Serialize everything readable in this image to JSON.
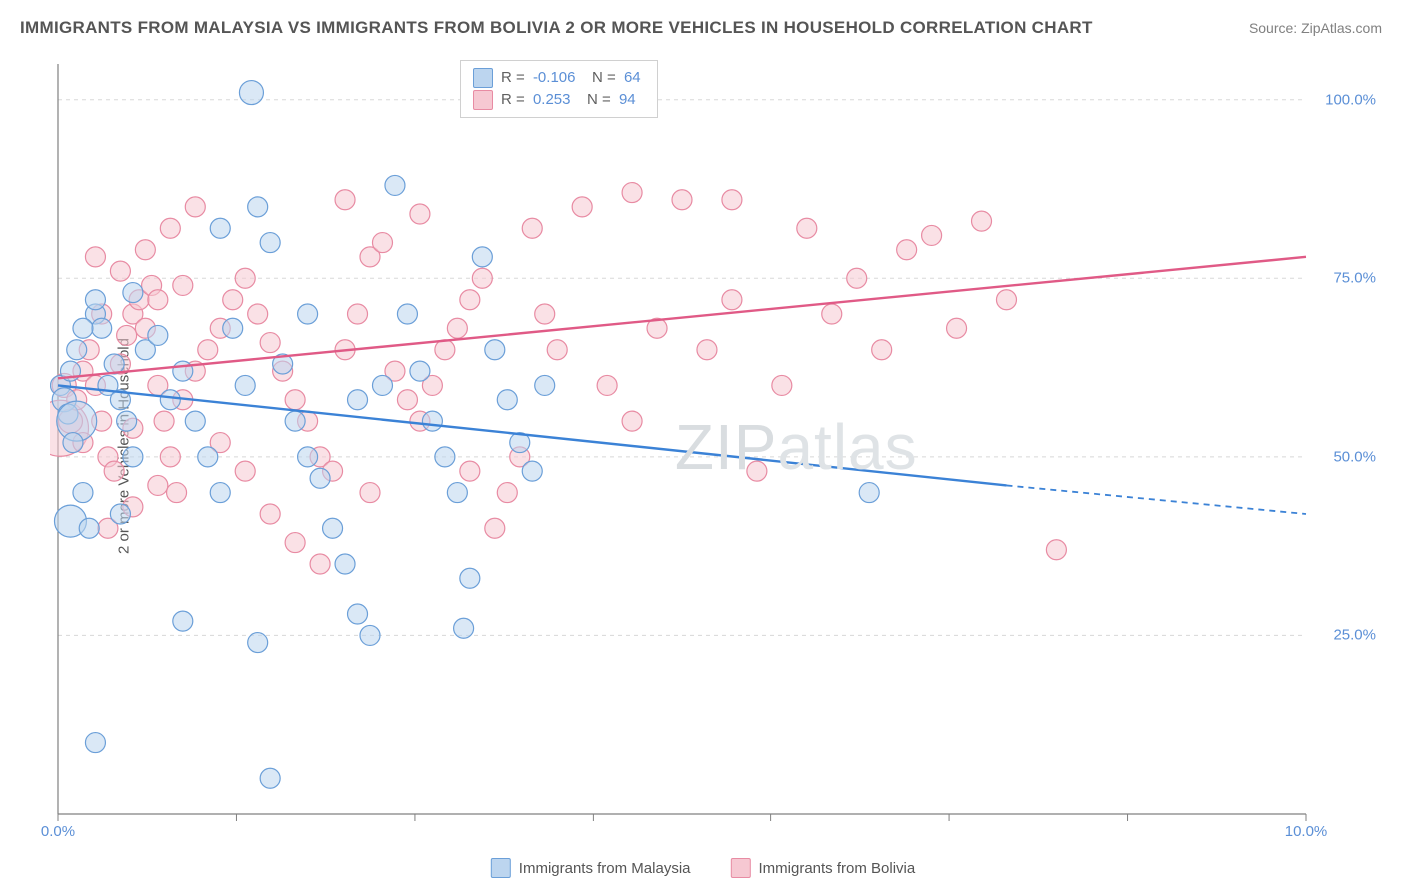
{
  "title": "IMMIGRANTS FROM MALAYSIA VS IMMIGRANTS FROM BOLIVIA 2 OR MORE VEHICLES IN HOUSEHOLD CORRELATION CHART",
  "source": "Source: ZipAtlas.com",
  "y_axis_label": "2 or more Vehicles in Household",
  "watermark": "ZIPatlas",
  "chart": {
    "type": "scatter",
    "background_color": "#ffffff",
    "grid_color": "#d8d8d8",
    "axis_color": "#808080",
    "xlim": [
      0,
      10
    ],
    "ylim": [
      0,
      105
    ],
    "x_ticks": [
      0,
      1.43,
      2.86,
      4.29,
      5.71,
      7.14,
      8.57,
      10
    ],
    "x_tick_labels": {
      "0": "0.0%",
      "10": "10.0%"
    },
    "y_ticks": [
      25,
      50,
      75,
      100
    ],
    "y_tick_labels": {
      "25": "25.0%",
      "50": "50.0%",
      "75": "75.0%",
      "100": "100.0%"
    },
    "series": [
      {
        "name": "Immigrants from Malaysia",
        "fill_color": "#bcd5ef",
        "stroke_color": "#6b9fd8",
        "line_color": "#3b82d6",
        "R": "-0.106",
        "N": "64",
        "trend": {
          "x1": 0,
          "y1": 60,
          "x2": 7.6,
          "y2": 46,
          "dash_x2": 10,
          "dash_y2": 42
        },
        "points": [
          [
            0.02,
            60,
            10
          ],
          [
            0.05,
            58,
            12
          ],
          [
            0.1,
            62,
            10
          ],
          [
            0.08,
            56,
            10
          ],
          [
            0.15,
            55,
            20
          ],
          [
            0.1,
            41,
            16
          ],
          [
            0.3,
            70,
            10
          ],
          [
            0.35,
            68,
            10
          ],
          [
            0.4,
            60,
            10
          ],
          [
            0.45,
            63,
            10
          ],
          [
            0.5,
            58,
            10
          ],
          [
            0.55,
            55,
            10
          ],
          [
            0.6,
            50,
            10
          ],
          [
            0.2,
            45,
            10
          ],
          [
            0.25,
            40,
            10
          ],
          [
            0.3,
            72,
            10
          ],
          [
            0.7,
            65,
            10
          ],
          [
            0.8,
            67,
            10
          ],
          [
            0.9,
            58,
            10
          ],
          [
            1.0,
            62,
            10
          ],
          [
            1.1,
            55,
            10
          ],
          [
            1.2,
            50,
            10
          ],
          [
            1.3,
            45,
            10
          ],
          [
            1.4,
            68,
            10
          ],
          [
            1.5,
            60,
            10
          ],
          [
            1.55,
            101,
            12
          ],
          [
            1.6,
            85,
            10
          ],
          [
            1.7,
            80,
            10
          ],
          [
            1.8,
            63,
            10
          ],
          [
            1.9,
            55,
            10
          ],
          [
            2.0,
            50,
            10
          ],
          [
            2.1,
            47,
            10
          ],
          [
            2.2,
            40,
            10
          ],
          [
            2.3,
            35,
            10
          ],
          [
            2.4,
            28,
            10
          ],
          [
            2.5,
            25,
            10
          ],
          [
            2.6,
            60,
            10
          ],
          [
            2.7,
            88,
            10
          ],
          [
            2.8,
            70,
            10
          ],
          [
            2.9,
            62,
            10
          ],
          [
            3.0,
            55,
            10
          ],
          [
            3.1,
            50,
            10
          ],
          [
            3.2,
            45,
            10
          ],
          [
            3.25,
            26,
            10
          ],
          [
            3.3,
            33,
            10
          ],
          [
            3.4,
            78,
            10
          ],
          [
            3.5,
            65,
            10
          ],
          [
            3.6,
            58,
            10
          ],
          [
            3.7,
            52,
            10
          ],
          [
            3.8,
            48,
            10
          ],
          [
            3.9,
            60,
            10
          ],
          [
            1.6,
            24,
            10
          ],
          [
            1.7,
            5,
            10
          ],
          [
            1.0,
            27,
            10
          ],
          [
            0.5,
            42,
            10
          ],
          [
            0.6,
            73,
            10
          ],
          [
            0.2,
            68,
            10
          ],
          [
            0.15,
            65,
            10
          ],
          [
            0.12,
            52,
            10
          ],
          [
            0.3,
            10,
            10
          ],
          [
            6.5,
            45,
            10
          ],
          [
            2.0,
            70,
            10
          ],
          [
            1.3,
            82,
            10
          ],
          [
            2.4,
            58,
            10
          ]
        ]
      },
      {
        "name": "Immigrants from Bolivia",
        "fill_color": "#f6c8d2",
        "stroke_color": "#e88ba3",
        "line_color": "#e05a86",
        "R": "0.253",
        "N": "94",
        "trend": {
          "x1": 0,
          "y1": 61,
          "x2": 10,
          "y2": 78
        },
        "points": [
          [
            0.02,
            54,
            28
          ],
          [
            0.05,
            60,
            12
          ],
          [
            0.1,
            55,
            12
          ],
          [
            0.15,
            58,
            10
          ],
          [
            0.2,
            62,
            10
          ],
          [
            0.25,
            65,
            10
          ],
          [
            0.3,
            60,
            10
          ],
          [
            0.35,
            55,
            10
          ],
          [
            0.4,
            50,
            10
          ],
          [
            0.45,
            48,
            10
          ],
          [
            0.5,
            63,
            10
          ],
          [
            0.55,
            67,
            10
          ],
          [
            0.6,
            70,
            10
          ],
          [
            0.65,
            72,
            10
          ],
          [
            0.7,
            68,
            10
          ],
          [
            0.75,
            74,
            10
          ],
          [
            0.8,
            60,
            10
          ],
          [
            0.85,
            55,
            10
          ],
          [
            0.9,
            50,
            10
          ],
          [
            0.95,
            45,
            10
          ],
          [
            1.0,
            58,
            10
          ],
          [
            1.1,
            62,
            10
          ],
          [
            1.2,
            65,
            10
          ],
          [
            1.3,
            68,
            10
          ],
          [
            1.4,
            72,
            10
          ],
          [
            1.5,
            75,
            10
          ],
          [
            1.6,
            70,
            10
          ],
          [
            1.7,
            66,
            10
          ],
          [
            1.8,
            62,
            10
          ],
          [
            1.9,
            58,
            10
          ],
          [
            2.0,
            55,
            10
          ],
          [
            2.1,
            50,
            10
          ],
          [
            2.2,
            48,
            10
          ],
          [
            2.3,
            65,
            10
          ],
          [
            2.4,
            70,
            10
          ],
          [
            2.5,
            78,
            10
          ],
          [
            2.6,
            80,
            10
          ],
          [
            2.7,
            62,
            10
          ],
          [
            2.8,
            58,
            10
          ],
          [
            2.9,
            55,
            10
          ],
          [
            3.0,
            60,
            10
          ],
          [
            3.1,
            65,
            10
          ],
          [
            3.2,
            68,
            10
          ],
          [
            3.3,
            72,
            10
          ],
          [
            3.4,
            75,
            10
          ],
          [
            3.5,
            40,
            10
          ],
          [
            3.6,
            45,
            10
          ],
          [
            3.7,
            50,
            10
          ],
          [
            3.8,
            82,
            10
          ],
          [
            3.9,
            70,
            10
          ],
          [
            4.0,
            65,
            10
          ],
          [
            4.2,
            85,
            10
          ],
          [
            4.4,
            60,
            10
          ],
          [
            4.6,
            55,
            10
          ],
          [
            4.8,
            68,
            10
          ],
          [
            5.0,
            86,
            10
          ],
          [
            5.2,
            65,
            10
          ],
          [
            5.4,
            72,
            10
          ],
          [
            5.6,
            48,
            10
          ],
          [
            5.8,
            60,
            10
          ],
          [
            6.0,
            82,
            10
          ],
          [
            6.2,
            70,
            10
          ],
          [
            6.4,
            75,
            10
          ],
          [
            6.6,
            65,
            10
          ],
          [
            6.8,
            79,
            10
          ],
          [
            7.0,
            81,
            10
          ],
          [
            7.2,
            68,
            10
          ],
          [
            7.4,
            83,
            10
          ],
          [
            7.6,
            72,
            10
          ],
          [
            8.0,
            37,
            10
          ],
          [
            0.3,
            78,
            10
          ],
          [
            0.5,
            76,
            10
          ],
          [
            0.7,
            79,
            10
          ],
          [
            0.9,
            82,
            10
          ],
          [
            1.1,
            85,
            10
          ],
          [
            1.3,
            52,
            10
          ],
          [
            1.5,
            48,
            10
          ],
          [
            1.7,
            42,
            10
          ],
          [
            1.9,
            38,
            10
          ],
          [
            2.1,
            35,
            10
          ],
          [
            0.4,
            40,
            10
          ],
          [
            0.6,
            43,
            10
          ],
          [
            0.8,
            46,
            10
          ],
          [
            2.3,
            86,
            10
          ],
          [
            2.5,
            45,
            10
          ],
          [
            2.9,
            84,
            10
          ],
          [
            3.3,
            48,
            10
          ],
          [
            4.6,
            87,
            10
          ],
          [
            5.4,
            86,
            10
          ],
          [
            1.0,
            74,
            10
          ],
          [
            0.2,
            52,
            10
          ],
          [
            0.35,
            70,
            10
          ],
          [
            0.6,
            54,
            10
          ],
          [
            0.8,
            72,
            10
          ]
        ]
      }
    ]
  },
  "legend": {
    "rows": [
      {
        "swatch_fill": "#bcd5ef",
        "swatch_stroke": "#6b9fd8",
        "R_label": "R =",
        "R": "-0.106",
        "N_label": "N =",
        "N": "64"
      },
      {
        "swatch_fill": "#f6c8d2",
        "swatch_stroke": "#e88ba3",
        "R_label": "R =",
        "R": " 0.253",
        "N_label": "N =",
        "N": "94"
      }
    ]
  },
  "bottom_legend": [
    {
      "swatch_fill": "#bcd5ef",
      "swatch_stroke": "#6b9fd8",
      "label": "Immigrants from Malaysia"
    },
    {
      "swatch_fill": "#f6c8d2",
      "swatch_stroke": "#e88ba3",
      "label": "Immigrants from Bolivia"
    }
  ]
}
